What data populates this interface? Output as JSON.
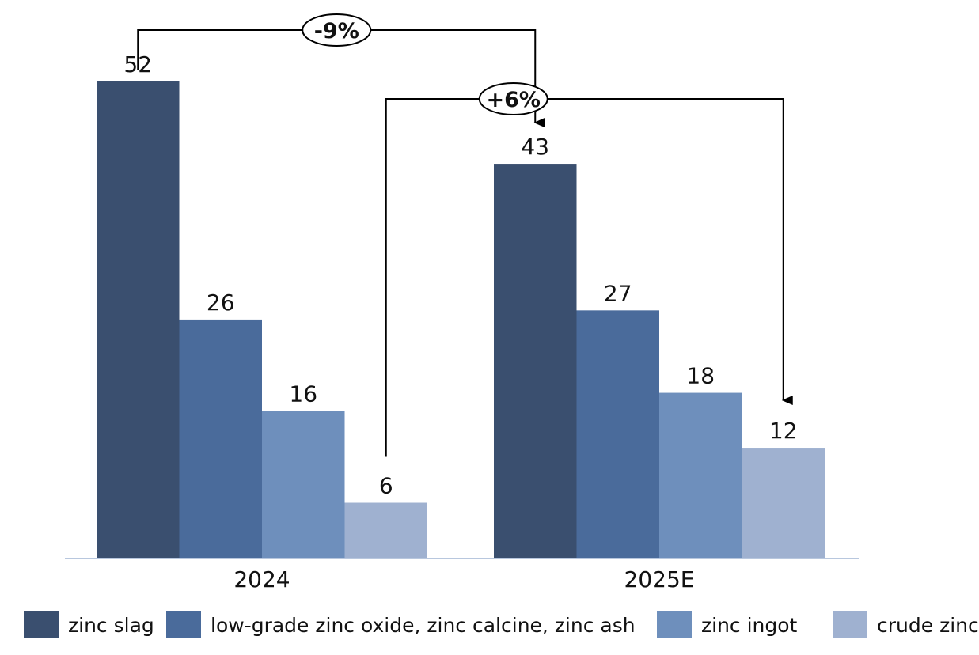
{
  "chart_data": {
    "type": "bar",
    "categories": [
      "2024",
      "2025E"
    ],
    "series": [
      {
        "name": "zinc slag",
        "values": [
          52,
          43
        ],
        "color": "#3a4f6f"
      },
      {
        "name": "low-grade zinc oxide, zinc calcine, zinc ash",
        "values": [
          26,
          27
        ],
        "color": "#4a6b9b"
      },
      {
        "name": "zinc ingot",
        "values": [
          16,
          18
        ],
        "color": "#6e8fbc"
      },
      {
        "name": "crude zinc",
        "values": [
          6,
          12
        ],
        "color": "#9fb1d0"
      }
    ],
    "annotations": [
      {
        "label": "-9%",
        "from": {
          "series": 0,
          "category": 0
        },
        "to": {
          "series": 0,
          "category": 1
        }
      },
      {
        "label": "+6%",
        "from": {
          "series": 3,
          "category": 0
        },
        "to": {
          "series": 3,
          "category": 1
        }
      }
    ],
    "title": "",
    "xlabel": "",
    "ylabel": "",
    "ylim": [
      0,
      60
    ],
    "grid": false,
    "legend_position": "bottom"
  }
}
